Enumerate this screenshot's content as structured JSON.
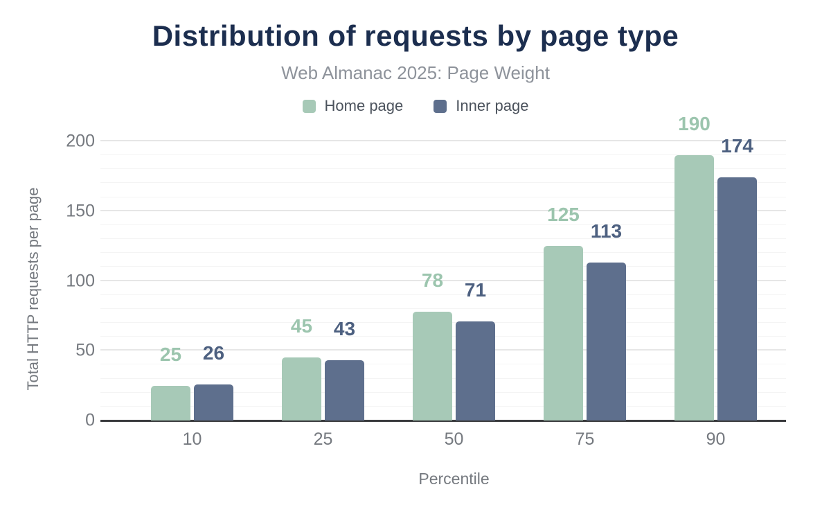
{
  "title": "Distribution of requests by page type",
  "subtitle": "Web Almanac 2025: Page Weight",
  "chart_data": {
    "type": "bar",
    "categories": [
      "10",
      "25",
      "50",
      "75",
      "90"
    ],
    "series": [
      {
        "name": "Home page",
        "color": "#a7c9b7",
        "label_color": "#9cc5ae",
        "values": [
          25,
          45,
          78,
          125,
          190
        ]
      },
      {
        "name": "Inner page",
        "color": "#5e6f8d",
        "label_color": "#4d6080",
        "values": [
          26,
          43,
          71,
          113,
          174
        ]
      }
    ],
    "title": "Distribution of requests by page type",
    "subtitle": "Web Almanac 2025: Page Weight",
    "xlabel": "Percentile",
    "ylabel": "Total HTTP requests per page",
    "ylim": [
      0,
      200
    ],
    "yticks": [
      0,
      50,
      100,
      150,
      200
    ],
    "minor_grid_step": 10,
    "grid": true,
    "legend_position": "top"
  },
  "colors": {
    "title": "#1c2e4f",
    "subtitle": "#8e939b",
    "tick_labels": "#75797f",
    "axis_line": "#3a3b3d",
    "major_grid": "#e6e6e6",
    "minor_grid": "#f4f4f4",
    "background": "#ffffff"
  }
}
